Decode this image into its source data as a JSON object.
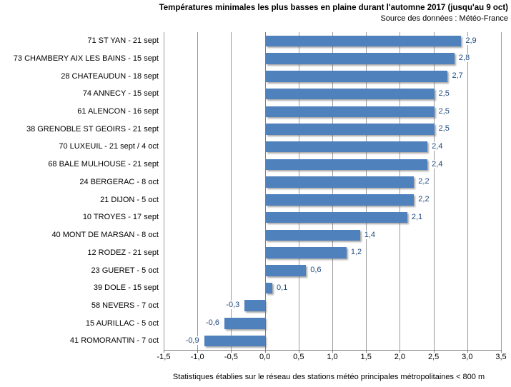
{
  "header": {
    "title": "Températures minimales les plus basses en plaine durant l'automne 2017 (jusqu'au 9 oct)",
    "subtitle": "Source des données : Météo-France"
  },
  "footer": {
    "note": "Statistiques établies sur le réseau des stations météo principales métropolitaines < 800 m"
  },
  "chart_data": {
    "type": "bar",
    "orientation": "horizontal",
    "title": "Températures minimales les plus basses en plaine durant l'automne 2017 (jusqu'au 9 oct)",
    "xlabel": "",
    "ylabel": "",
    "categories": [
      "71 ST YAN - 21 sept",
      "73 CHAMBERY AIX LES BAINS - 15 sept",
      "28 CHATEAUDUN - 18 sept",
      "74 ANNECY - 15 sept",
      "61 ALENCON - 16 sept",
      "38 GRENOBLE ST GEOIRS - 21 sept",
      "70 LUXEUIL - 21 sept / 4 oct",
      "68 BALE MULHOUSE - 21 sept",
      "24 BERGERAC - 8 oct",
      "21 DIJON - 5 oct",
      "10 TROYES - 17 sept",
      "40 MONT DE MARSAN - 8 oct",
      "12 RODEZ - 21 sept",
      "23 GUERET - 5 oct",
      "39 DOLE - 15 sept",
      "58 NEVERS - 7 oct",
      "15 AURILLAC - 5 oct",
      "41 ROMORANTIN - 7 oct"
    ],
    "values": [
      2.9,
      2.8,
      2.7,
      2.5,
      2.5,
      2.5,
      2.4,
      2.4,
      2.2,
      2.2,
      2.1,
      1.4,
      1.2,
      0.6,
      0.1,
      -0.3,
      -0.6,
      -0.9
    ],
    "value_labels": [
      "2,9",
      "2,8",
      "2,7",
      "2,5",
      "2,5",
      "2,5",
      "2,4",
      "2,4",
      "2,2",
      "2,2",
      "2,1",
      "1,4",
      "1,2",
      "0,6",
      "0,1",
      "-0,3",
      "-0,6",
      "-0,9"
    ],
    "xlim": [
      -1.5,
      3.5
    ],
    "x_ticks": [
      -1.5,
      -1.0,
      -0.5,
      0.0,
      0.5,
      1.0,
      1.5,
      2.0,
      2.5,
      3.0,
      3.5
    ],
    "x_tick_labels": [
      "-1,5",
      "-1,0",
      "-0,5",
      "0,0",
      "0,5",
      "1,0",
      "1,5",
      "2,0",
      "2,5",
      "3,0",
      "3,5"
    ],
    "grid": true,
    "legend": "none",
    "bar_color": "#4F81BD",
    "value_label_color": "#1F497D",
    "gridline_color": "#9a9a9a",
    "axis_color": "#7f7f7f"
  }
}
